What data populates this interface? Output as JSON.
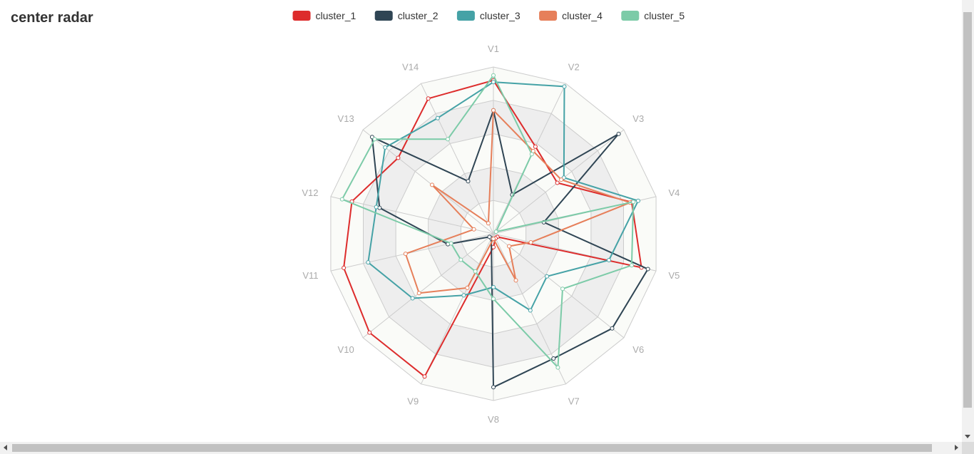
{
  "page": {
    "title": "center radar"
  },
  "chart_data": {
    "type": "radar",
    "title": "center radar",
    "indicators": [
      "V1",
      "V2",
      "V3",
      "V4",
      "V5",
      "V6",
      "V7",
      "V8",
      "V9",
      "V10",
      "V11",
      "V12",
      "V13",
      "V14"
    ],
    "range": [
      0,
      1
    ],
    "split_number": 5,
    "legend_position": "top-center",
    "series": [
      {
        "name": "cluster_1",
        "color": "#dd2c2c",
        "values": [
          0.92,
          0.58,
          0.49,
          0.85,
          0.91,
          0.03,
          0.03,
          0.08,
          0.95,
          0.95,
          0.92,
          0.87,
          0.73,
          0.9
        ]
      },
      {
        "name": "cluster_2",
        "color": "#2f4554",
        "values": [
          0.74,
          0.26,
          0.96,
          0.31,
          0.95,
          0.91,
          0.83,
          0.92,
          0.03,
          0.03,
          0.28,
          0.7,
          0.93,
          0.35
        ]
      },
      {
        "name": "cluster_3",
        "color": "#45a2a6",
        "values": [
          0.91,
          0.98,
          0.54,
          0.89,
          0.71,
          0.41,
          0.51,
          0.32,
          0.41,
          0.62,
          0.77,
          0.72,
          0.83,
          0.77
        ]
      },
      {
        "name": "cluster_4",
        "color": "#e67f5a",
        "values": [
          0.74,
          0.55,
          0.52,
          0.84,
          0.23,
          0.12,
          0.31,
          0.03,
          0.36,
          0.57,
          0.54,
          0.12,
          0.47,
          0.07
        ]
      },
      {
        "name": "cluster_5",
        "color": "#7ccba8",
        "values": [
          0.95,
          0.53,
          0.02,
          0.86,
          0.85,
          0.53,
          0.89,
          0.39,
          0.25,
          0.25,
          0.26,
          0.93,
          0.91,
          0.63
        ]
      }
    ]
  }
}
